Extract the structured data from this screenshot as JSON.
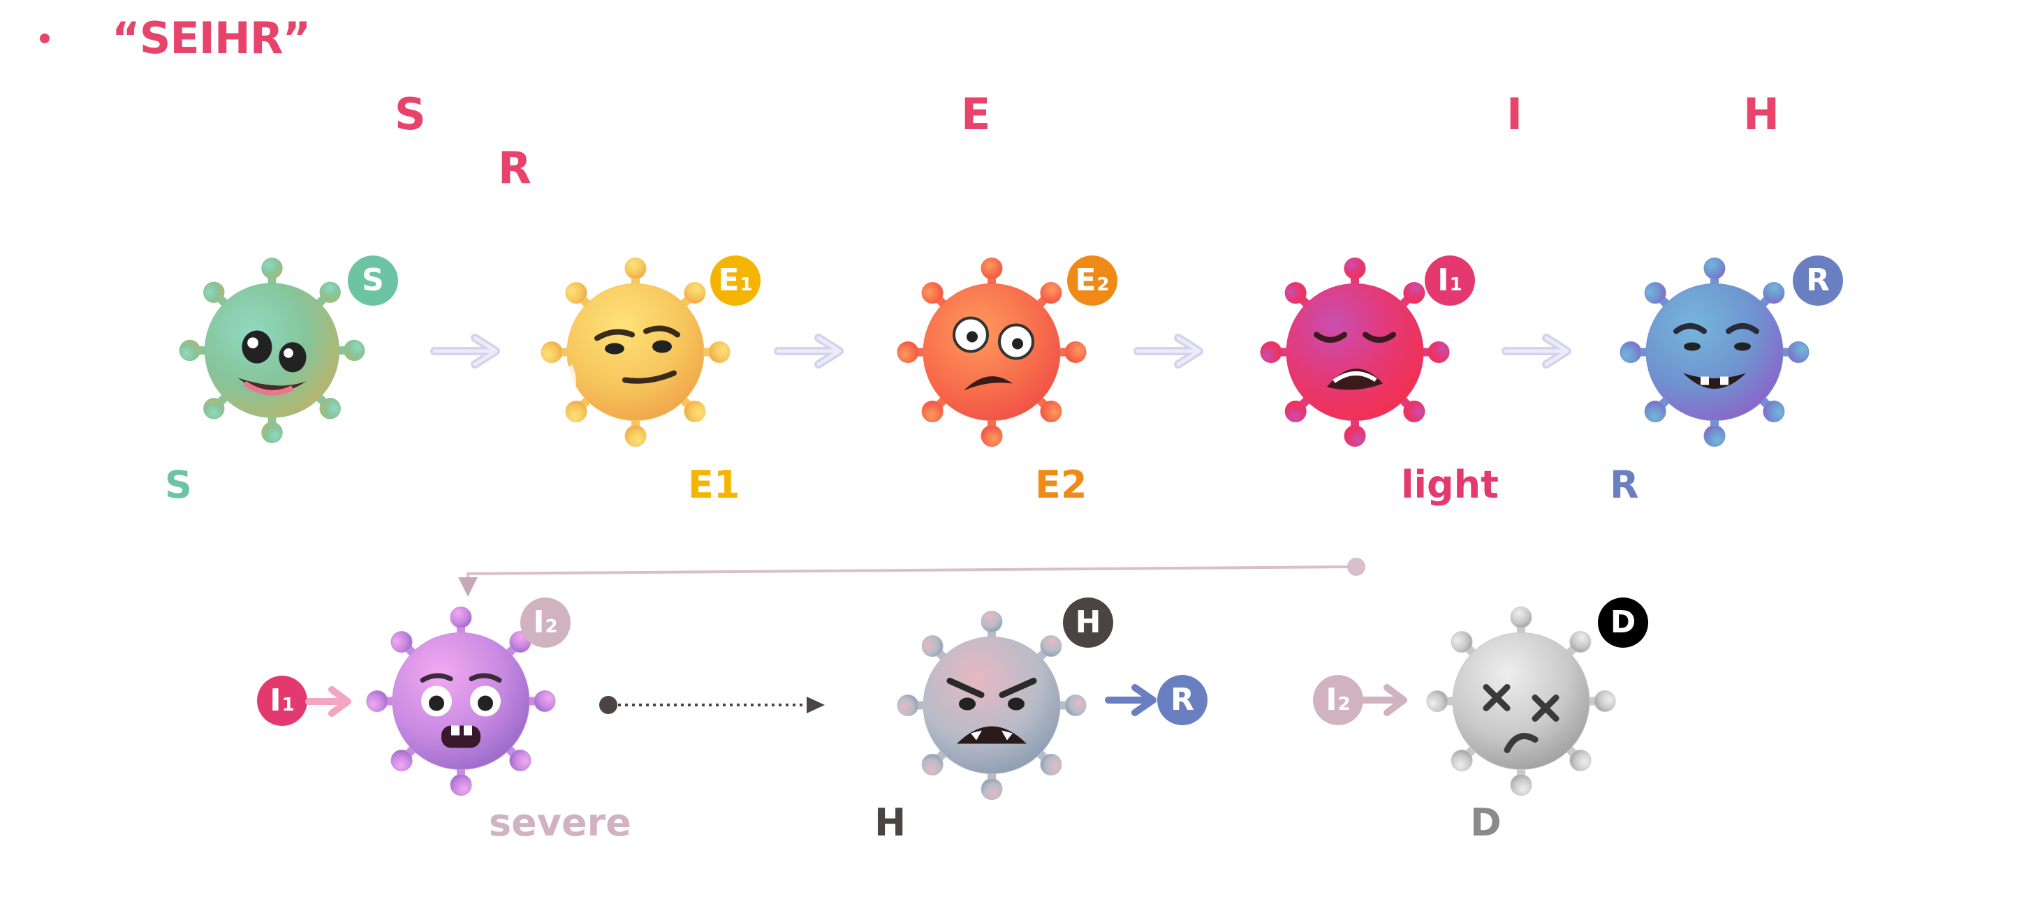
{
  "title": "“SEIHR”",
  "header_letters": [
    "S",
    "E",
    "I",
    "H",
    "R"
  ],
  "colors": {
    "accent": "#e8436b",
    "S": "#6cc4a3",
    "E1": "#f5b400",
    "E2": "#f08a16",
    "I1": "#e3396f",
    "R": "#6a7fc1",
    "I2": "#d1b3c0",
    "H": "#4a4444",
    "D": "#000000"
  },
  "stages_row1": [
    {
      "badge_main": "S",
      "badge_sub": "",
      "label": "S",
      "icon": "happy-green-virus-icon"
    },
    {
      "badge_main": "E",
      "badge_sub": "1",
      "label": "E1",
      "icon": "smirking-yellow-virus-icon"
    },
    {
      "badge_main": "E",
      "badge_sub": "2",
      "label": "E2",
      "icon": "worried-orange-virus-icon"
    },
    {
      "badge_main": "I",
      "badge_sub": "1",
      "label": "light",
      "icon": "crying-red-virus-icon"
    },
    {
      "badge_main": "R",
      "badge_sub": "",
      "label": "R",
      "icon": "relieved-blue-virus-icon"
    }
  ],
  "stages_row2": [
    {
      "badge_main": "I",
      "badge_sub": "2",
      "label": "severe",
      "icon": "scared-purple-virus-icon"
    },
    {
      "badge_main": "H",
      "badge_sub": "",
      "label": "H",
      "icon": "angry-gray-virus-icon"
    },
    {
      "badge_main": "D",
      "badge_sub": "",
      "label": "D",
      "icon": "dead-gray-virus-icon"
    }
  ],
  "inline_badges": {
    "i1": {
      "main": "I",
      "sub": "1"
    },
    "r": {
      "main": "R",
      "sub": ""
    },
    "i2": {
      "main": "I",
      "sub": "2"
    }
  }
}
